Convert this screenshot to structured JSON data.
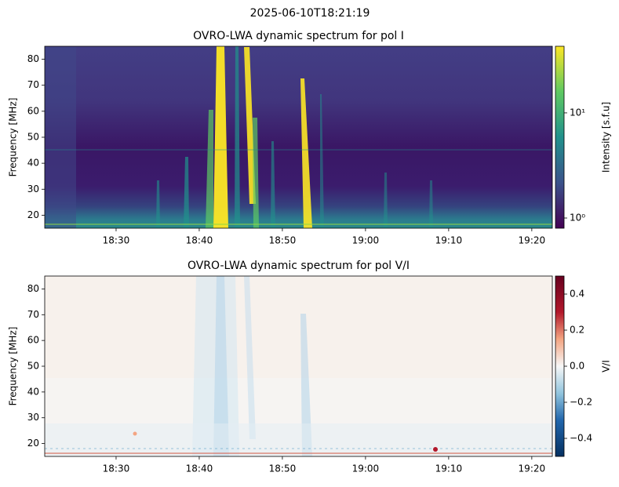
{
  "title": "2025-06-10T18:21:19",
  "chart_data": [
    {
      "type": "heatmap",
      "title": "OVRO-LWA dynamic spectrum for pol I",
      "y_label": "Frequency [MHz]",
      "xlim": [
        "18:21:25",
        "19:22:28"
      ],
      "xticks": [
        "18:30",
        "18:40",
        "18:50",
        "19:00",
        "19:10",
        "19:20"
      ],
      "ylim": [
        15,
        85
      ],
      "yticks": [
        20,
        30,
        40,
        50,
        60,
        70,
        80
      ],
      "colorbar": {
        "label": "Intensity [s.f.u]",
        "colormap": "viridis",
        "log": true,
        "clim": [
          0.8,
          43
        ],
        "ticks": [
          {
            "value": 1,
            "label": "10⁰"
          },
          {
            "value": 10,
            "label": "10¹"
          }
        ]
      }
    },
    {
      "type": "heatmap",
      "title": "OVRO-LWA dynamic spectrum for pol V/I",
      "y_label": "Frequency [MHz]",
      "xlim": [
        "18:21:25",
        "19:22:28"
      ],
      "xticks": [
        "18:30",
        "18:40",
        "18:50",
        "19:00",
        "19:10",
        "19:20"
      ],
      "ylim": [
        15,
        85
      ],
      "yticks": [
        20,
        30,
        40,
        50,
        60,
        70,
        80
      ],
      "colorbar": {
        "label": "V/I",
        "colormap": "RdBu_r",
        "log": false,
        "clim": [
          -0.5,
          0.5
        ],
        "ticks": [
          {
            "value": -0.4,
            "label": "−0.4"
          },
          {
            "value": -0.2,
            "label": "−0.2"
          },
          {
            "value": 0,
            "label": "0.0"
          },
          0.2,
          0.4
        ]
      }
    }
  ]
}
